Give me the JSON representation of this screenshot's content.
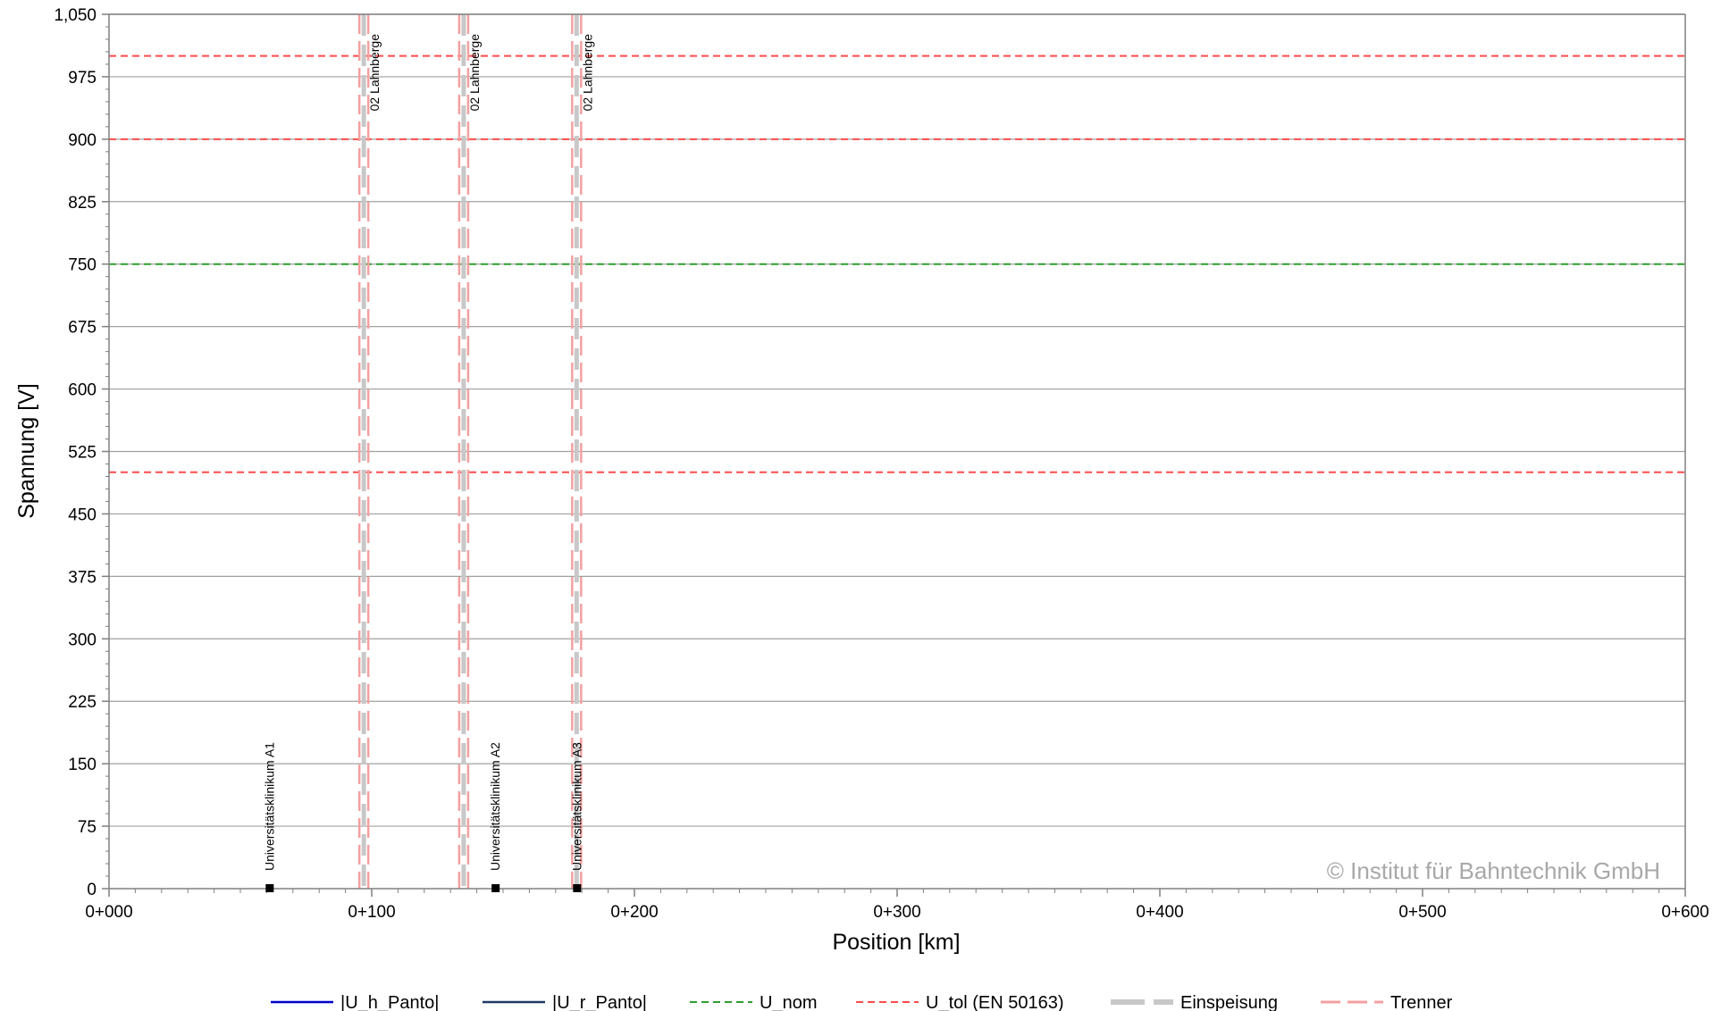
{
  "chart_data": {
    "type": "line",
    "xlabel": "Position [km]",
    "ylabel": "Spannung [V]",
    "xlim": [
      0,
      600
    ],
    "ylim": [
      0,
      1050
    ],
    "x_ticks": [
      0,
      100,
      200,
      300,
      400,
      500,
      600
    ],
    "x_tick_labels": [
      "0+000",
      "0+100",
      "0+200",
      "0+300",
      "0+400",
      "0+500",
      "0+600"
    ],
    "y_ticks": [
      0,
      75,
      150,
      225,
      300,
      375,
      450,
      525,
      600,
      675,
      750,
      825,
      900,
      975,
      1050
    ],
    "y_tick_labels": [
      "0",
      "75",
      "150",
      "225",
      "300",
      "375",
      "450",
      "525",
      "600",
      "675",
      "750",
      "825",
      "900",
      "975",
      "1,050"
    ],
    "grid": true,
    "legend_position": "bottom",
    "series": [
      {
        "name": "|U_h_Panto|",
        "color": "#0000cc",
        "style": "solid",
        "values": []
      },
      {
        "name": "|U_r_Panto|",
        "color": "#1f3864",
        "style": "solid",
        "values": []
      },
      {
        "name": "U_nom",
        "color": "#2e9e2e",
        "style": "dashed",
        "y": [
          750
        ]
      },
      {
        "name": "U_tol (EN 50163)",
        "color": "#ff4b4b",
        "style": "dashed",
        "y": [
          500,
          900,
          1000
        ]
      },
      {
        "name": "Einspeisung",
        "color": "#c8c8c8",
        "style": "dashed-thick",
        "x": [
          97,
          135,
          178
        ]
      },
      {
        "name": "Trenner",
        "color": "#f4a0a0",
        "style": "dashed-double",
        "x": [
          97,
          135,
          178
        ]
      }
    ],
    "feed_labels": [
      {
        "x": 97,
        "text": "02 Lahnberge"
      },
      {
        "x": 135,
        "text": "02 Lahnberge"
      },
      {
        "x": 178,
        "text": "02 Lahnberge"
      }
    ],
    "stations": [
      {
        "x": 61,
        "text": "Universitätsklinikum A1"
      },
      {
        "x": 147,
        "text": "Universitätsklinikum A2"
      },
      {
        "x": 178,
        "text": "Universitätsklinikum A3"
      }
    ],
    "watermark": "© Institut für Bahntechnik GmbH"
  },
  "colors": {
    "grid": "#a0a0a0",
    "axis": "#808080",
    "u_nom": "#2e9e2e",
    "u_tol": "#ff4b4b",
    "einspeisung": "#c8c8c8",
    "trenner": "#f4a0a0"
  }
}
